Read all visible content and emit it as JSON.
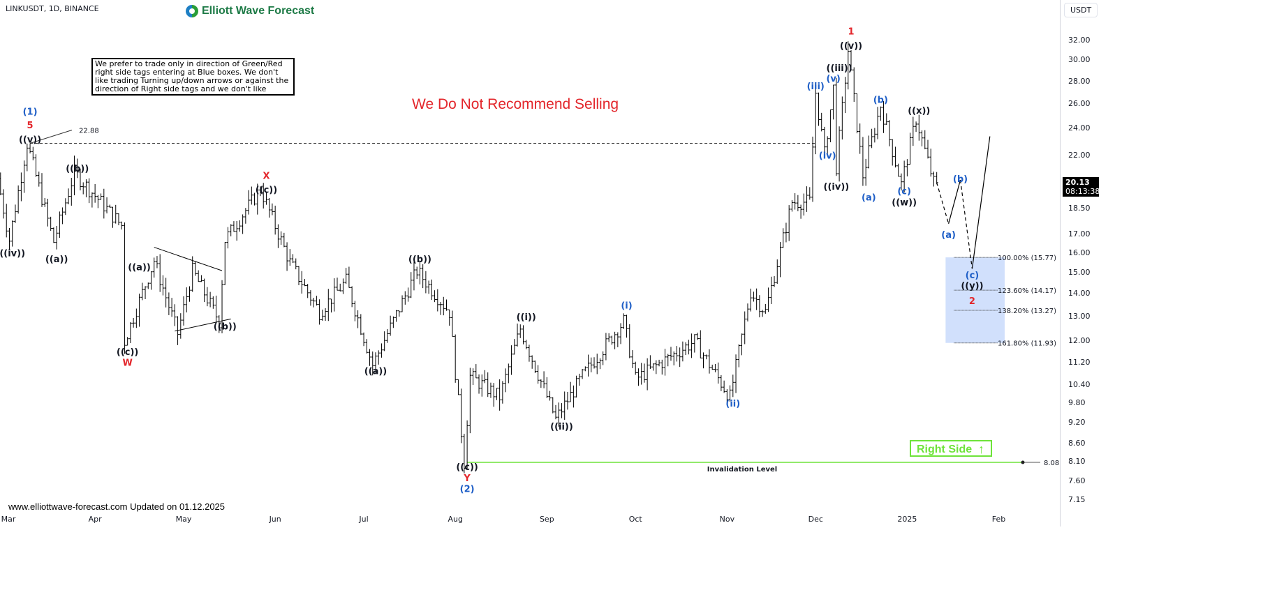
{
  "header": {
    "symbol": "LINKUSDT, 1D, BINANCE",
    "logo_text": "Elliott Wave Forecast",
    "notice": "We prefer to trade only in direction of Green/Red right side tags entering at Blue boxes. We don't like trading Turning up/down arrows or against the direction of Right side tags and we don't like",
    "warning": "We Do Not Recommend Selling",
    "footer": "www.elliottwave-forecast.com Updated on 01.12.2025"
  },
  "axis": {
    "currency": "USDT",
    "last_price": "20.13",
    "countdown": "08:13:38"
  },
  "tags": {
    "right_side": "Right Side",
    "right_side_icon": "arrow-up-icon",
    "invalidation": "Invalidation Level",
    "invalidation_value": "8.08",
    "peak_value": "22.88"
  },
  "colors": {
    "black_label": "#131722",
    "blue_label": "#1f5fc7",
    "red_label": "#e3262b",
    "invalidation_line": "#6ee33a",
    "blue_box": "#c9dafc"
  },
  "chart_data": {
    "type": "ohlc",
    "scale": "log",
    "ylim": [
      7.0,
      33.5
    ],
    "xlim": [
      "2024-02-28",
      "2025-02-10"
    ],
    "y_ticks": [
      "32.00",
      "30.00",
      "28.00",
      "26.00",
      "24.00",
      "22.00",
      "18.50",
      "17.00",
      "16.00",
      "15.00",
      "14.00",
      "13.00",
      "12.00",
      "11.20",
      "10.40",
      "9.80",
      "9.20",
      "8.60",
      "8.10",
      "7.60",
      "7.15"
    ],
    "x_ticks": [
      {
        "label": "Mar",
        "date": "2024-03-01"
      },
      {
        "label": "Apr",
        "date": "2024-04-01"
      },
      {
        "label": "May",
        "date": "2024-05-01"
      },
      {
        "label": "Jun",
        "date": "2024-06-01"
      },
      {
        "label": "Jul",
        "date": "2024-07-01"
      },
      {
        "label": "Aug",
        "date": "2024-08-01"
      },
      {
        "label": "Sep",
        "date": "2024-09-01"
      },
      {
        "label": "Oct",
        "date": "2024-10-01"
      },
      {
        "label": "Nov",
        "date": "2024-11-01"
      },
      {
        "label": "Dec",
        "date": "2024-12-01"
      },
      {
        "label": "2025",
        "date": "2025-01-01"
      },
      {
        "label": "Feb",
        "date": "2025-02-01"
      }
    ],
    "price_pivots": [
      [
        "2024-02-29",
        20.4
      ],
      [
        "2024-03-04",
        16.7
      ],
      [
        "2024-03-10",
        22.88
      ],
      [
        "2024-03-19",
        16.6
      ],
      [
        "2024-03-26",
        20.8
      ],
      [
        "2024-04-11",
        17.5
      ],
      [
        "2024-04-12",
        12.0
      ],
      [
        "2024-04-22",
        15.6
      ],
      [
        "2024-04-30",
        12.3
      ],
      [
        "2024-05-05",
        15.1
      ],
      [
        "2024-05-14",
        12.8
      ],
      [
        "2024-05-16",
        16.7
      ],
      [
        "2024-05-28",
        19.7
      ],
      [
        "2024-06-07",
        15.5
      ],
      [
        "2024-06-17",
        13.2
      ],
      [
        "2024-06-26",
        14.6
      ],
      [
        "2024-07-05",
        11.1
      ],
      [
        "2024-07-20",
        15.1
      ],
      [
        "2024-07-31",
        13.2
      ],
      [
        "2024-08-05",
        8.08
      ],
      [
        "2024-08-07",
        10.7
      ],
      [
        "2024-08-17",
        10.0
      ],
      [
        "2024-08-24",
        12.5
      ],
      [
        "2024-09-05",
        9.3
      ],
      [
        "2024-09-14",
        10.7
      ],
      [
        "2024-09-28",
        12.8
      ],
      [
        "2024-10-02",
        10.6
      ],
      [
        "2024-10-22",
        12.0
      ],
      [
        "2024-11-03",
        10.0
      ],
      [
        "2024-11-10",
        14.1
      ],
      [
        "2024-11-15",
        13.2
      ],
      [
        "2024-11-24",
        18.9
      ],
      [
        "2024-11-30",
        18.9
      ],
      [
        "2024-12-02",
        27.0
      ],
      [
        "2024-12-05",
        22.1
      ],
      [
        "2024-12-08",
        27.4
      ],
      [
        "2024-12-09",
        21.2
      ],
      [
        "2024-12-13",
        31.0
      ],
      [
        "2024-12-18",
        20.6
      ],
      [
        "2024-12-24",
        25.9
      ],
      [
        "2024-12-31",
        20.0
      ],
      [
        "2025-01-05",
        24.8
      ],
      [
        "2025-01-11",
        20.13
      ]
    ],
    "projection": [
      {
        "from": [
          "2025-01-11",
          20.13
        ],
        "to": [
          "2025-01-15",
          17.6
        ],
        "style": "dashed"
      },
      {
        "from": [
          "2025-01-15",
          17.6
        ],
        "to": [
          "2025-01-19",
          20.3
        ],
        "style": "solid"
      },
      {
        "from": [
          "2025-01-19",
          20.3
        ],
        "to": [
          "2025-01-23",
          15.2
        ],
        "style": "dashed"
      },
      {
        "from": [
          "2025-01-23",
          15.2
        ],
        "to": [
          "2025-01-29",
          23.4
        ],
        "style": "solid"
      }
    ],
    "triangle": [
      {
        "from": [
          "2024-04-21",
          16.3
        ],
        "to": [
          "2024-05-14",
          15.1
        ]
      },
      {
        "from": [
          "2024-04-28",
          12.4
        ],
        "to": [
          "2024-05-17",
          12.9
        ]
      }
    ],
    "fib_box": {
      "from_date": "2025-01-14",
      "to_date": "2025-02-03",
      "top": 15.77,
      "bottom": 11.93,
      "levels": [
        {
          "label": "100.00% (15.77)",
          "value": 15.77
        },
        {
          "label": "123.60% (14.17)",
          "value": 14.17
        },
        {
          "label": "138.20% (13.27)",
          "value": 13.27
        },
        {
          "label": "161.80% (11.93)",
          "value": 11.93
        }
      ]
    },
    "resistance_line": {
      "value": 22.88,
      "from": "2024-03-10",
      "to": "2024-12-01"
    },
    "invalidation_line": {
      "value": 8.08,
      "from": "2024-08-05",
      "to": "2025-02-08"
    },
    "wave_labels": [
      {
        "text": "(1)",
        "color": "blue",
        "date": "2024-03-10",
        "price": 25.4
      },
      {
        "text": "5",
        "color": "red",
        "date": "2024-03-10",
        "price": 24.3
      },
      {
        "text": "((v))",
        "color": "black",
        "date": "2024-03-10",
        "price": 23.2
      },
      {
        "text": "((iv))",
        "color": "black",
        "date": "2024-03-04",
        "price": 16.0
      },
      {
        "text": "((a))",
        "color": "black",
        "date": "2024-03-19",
        "price": 15.7
      },
      {
        "text": "((b))",
        "color": "black",
        "date": "2024-03-26",
        "price": 21.1
      },
      {
        "text": "((c))",
        "color": "black",
        "date": "2024-04-12",
        "price": 11.6
      },
      {
        "text": "W",
        "color": "red",
        "date": "2024-04-12",
        "price": 11.2
      },
      {
        "text": "((a))",
        "color": "black",
        "date": "2024-04-16",
        "price": 15.3
      },
      {
        "text": "((b))",
        "color": "black",
        "date": "2024-05-15",
        "price": 12.6
      },
      {
        "text": "X",
        "color": "red",
        "date": "2024-05-29",
        "price": 20.6
      },
      {
        "text": "((c))",
        "color": "black",
        "date": "2024-05-29",
        "price": 19.7
      },
      {
        "text": "((a))",
        "color": "black",
        "date": "2024-07-05",
        "price": 10.9
      },
      {
        "text": "((b))",
        "color": "black",
        "date": "2024-07-20",
        "price": 15.7
      },
      {
        "text": "((c))",
        "color": "black",
        "date": "2024-08-05",
        "price": 7.95
      },
      {
        "text": "Y",
        "color": "red",
        "date": "2024-08-05",
        "price": 7.7
      },
      {
        "text": "(2)",
        "color": "blue",
        "date": "2024-08-05",
        "price": 7.42
      },
      {
        "text": "((i))",
        "color": "black",
        "date": "2024-08-25",
        "price": 13.0
      },
      {
        "text": "((ii))",
        "color": "black",
        "date": "2024-09-06",
        "price": 9.1
      },
      {
        "text": "(i)",
        "color": "blue",
        "date": "2024-09-28",
        "price": 13.5
      },
      {
        "text": "(ii)",
        "color": "blue",
        "date": "2024-11-03",
        "price": 9.8
      },
      {
        "text": "(iii)",
        "color": "blue",
        "date": "2024-12-01",
        "price": 27.6
      },
      {
        "text": "(iv)",
        "color": "blue",
        "date": "2024-12-05",
        "price": 22.0
      },
      {
        "text": "(v)",
        "color": "blue",
        "date": "2024-12-07",
        "price": 28.3
      },
      {
        "text": "((iii))",
        "color": "black",
        "date": "2024-12-09",
        "price": 29.3
      },
      {
        "text": "((v))",
        "color": "black",
        "date": "2024-12-13",
        "price": 31.5
      },
      {
        "text": "1",
        "color": "red",
        "date": "2024-12-13",
        "price": 33.0
      },
      {
        "text": "((iv))",
        "color": "black",
        "date": "2024-12-08",
        "price": 19.9
      },
      {
        "text": "(a)",
        "color": "blue",
        "date": "2024-12-19",
        "price": 19.2
      },
      {
        "text": "(b)",
        "color": "blue",
        "date": "2024-12-23",
        "price": 26.4
      },
      {
        "text": "(c)",
        "color": "blue",
        "date": "2024-12-31",
        "price": 19.6
      },
      {
        "text": "((w))",
        "color": "black",
        "date": "2024-12-31",
        "price": 18.9
      },
      {
        "text": "((x))",
        "color": "black",
        "date": "2025-01-05",
        "price": 25.5
      },
      {
        "text": "(a)",
        "color": "blue",
        "date": "2025-01-15",
        "price": 17.0
      },
      {
        "text": "(b)",
        "color": "blue",
        "date": "2025-01-19",
        "price": 20.4
      },
      {
        "text": "(c)",
        "color": "blue",
        "date": "2025-01-23",
        "price": 14.9
      },
      {
        "text": "((y))",
        "color": "black",
        "date": "2025-01-23",
        "price": 14.4
      },
      {
        "text": "2",
        "color": "red",
        "date": "2025-01-23",
        "price": 13.7
      }
    ]
  }
}
